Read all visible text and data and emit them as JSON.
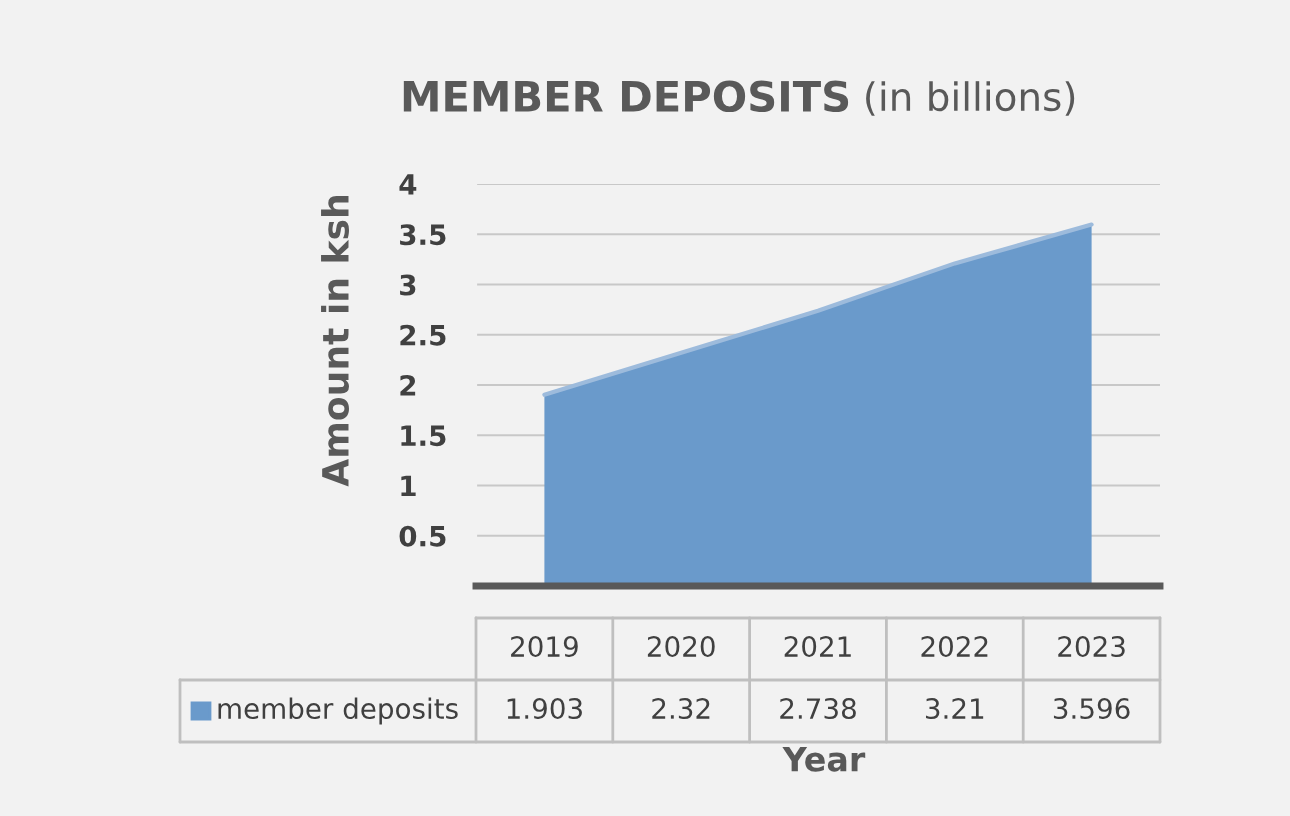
{
  "chart_data": {
    "type": "area",
    "title": "MEMBER DEPOSITS",
    "subtitle": "(in billions)",
    "xlabel": "Year",
    "ylabel": "Amount in ksh",
    "categories": [
      "2019",
      "2020",
      "2021",
      "2022",
      "2023"
    ],
    "series": [
      {
        "name": "member deposits",
        "color": "#6a9acb",
        "values": [
          1.903,
          2.32,
          2.738,
          3.21,
          3.596
        ]
      }
    ],
    "ylim": [
      0,
      4
    ],
    "yticks": [
      {
        "value": 0,
        "label": null
      },
      0.5,
      1,
      1.5,
      2,
      2.5,
      3,
      3.5,
      4
    ],
    "grid": "y",
    "data_labels": true
  }
}
